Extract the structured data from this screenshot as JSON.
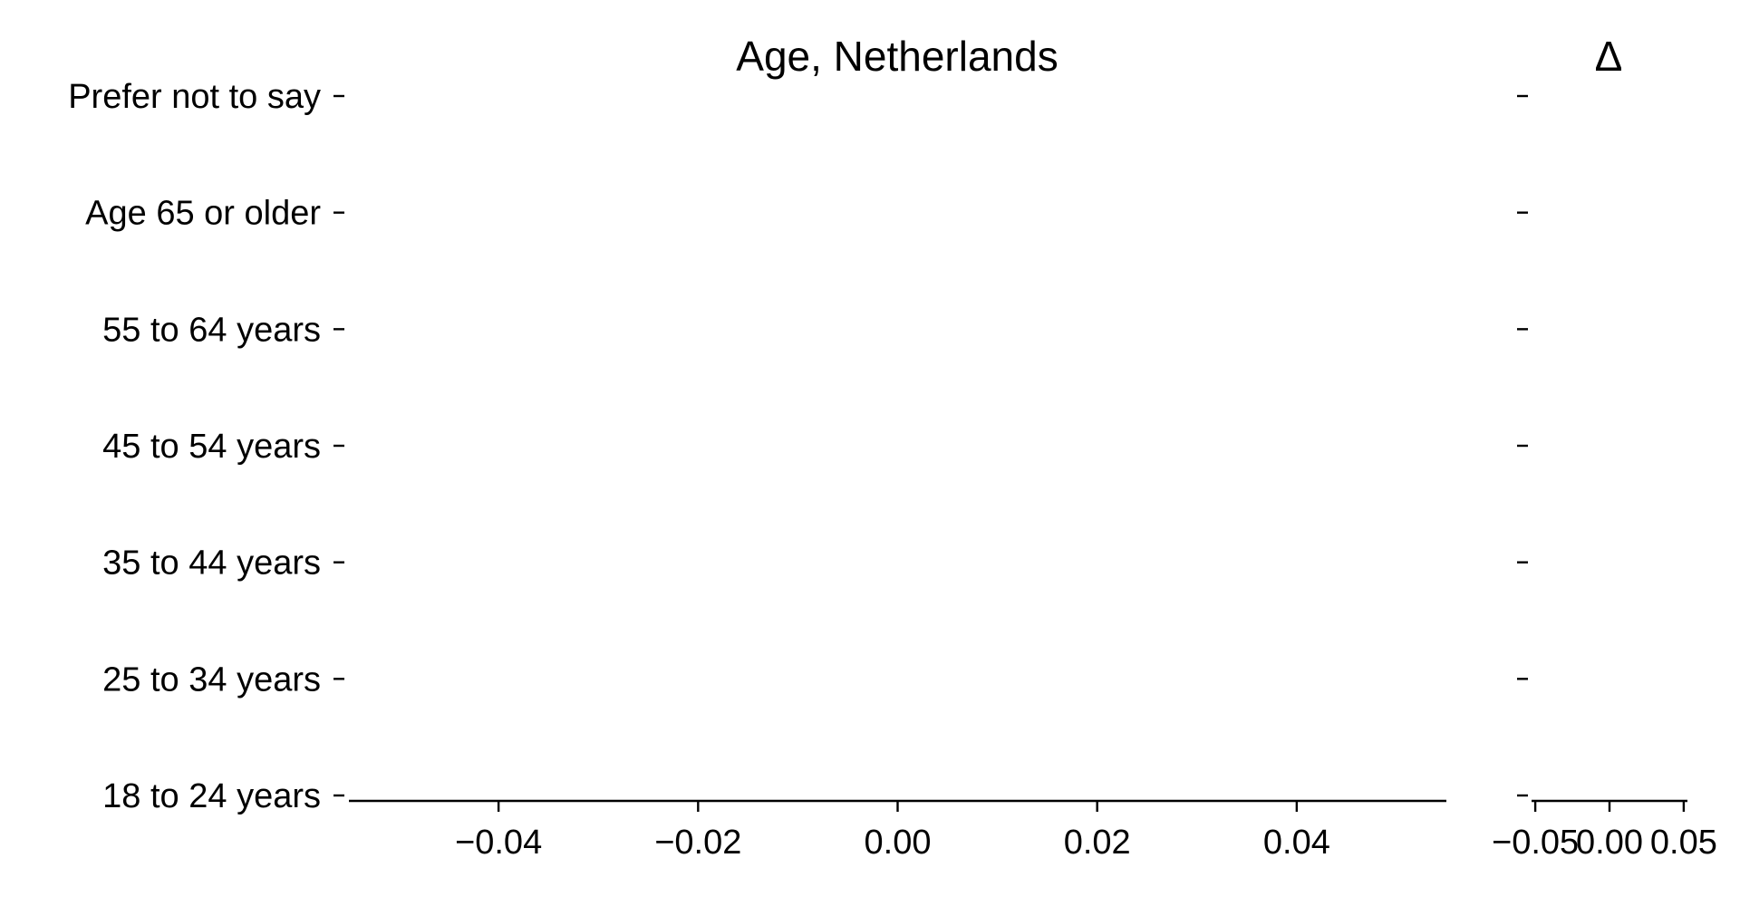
{
  "chart_data": [
    {
      "type": "bar",
      "orientation": "horizontal",
      "title": "Age, Netherlands",
      "categories": [
        "18 to 24 years",
        "25 to 34 years",
        "35 to 44 years",
        "45 to 54 years",
        "55 to 64 years",
        "Age 65 or older",
        "Prefer not to say"
      ],
      "xlim": [
        -0.055,
        0.055
      ],
      "xticks": [
        {
          "value": -0.04,
          "label": "−0.04"
        },
        {
          "value": -0.02,
          "label": "−0.02"
        },
        {
          "value": 0,
          "label": "0.00"
        },
        0.02,
        0.04
      ]
    },
    {
      "type": "bar",
      "orientation": "horizontal",
      "title": "Δ",
      "xlim": [
        -0.0525,
        0.0525
      ],
      "xticks": [
        {
          "value": -0.05,
          "label": "−0.05"
        },
        {
          "value": 0,
          "label": "0.00"
        },
        0.05
      ]
    }
  ]
}
